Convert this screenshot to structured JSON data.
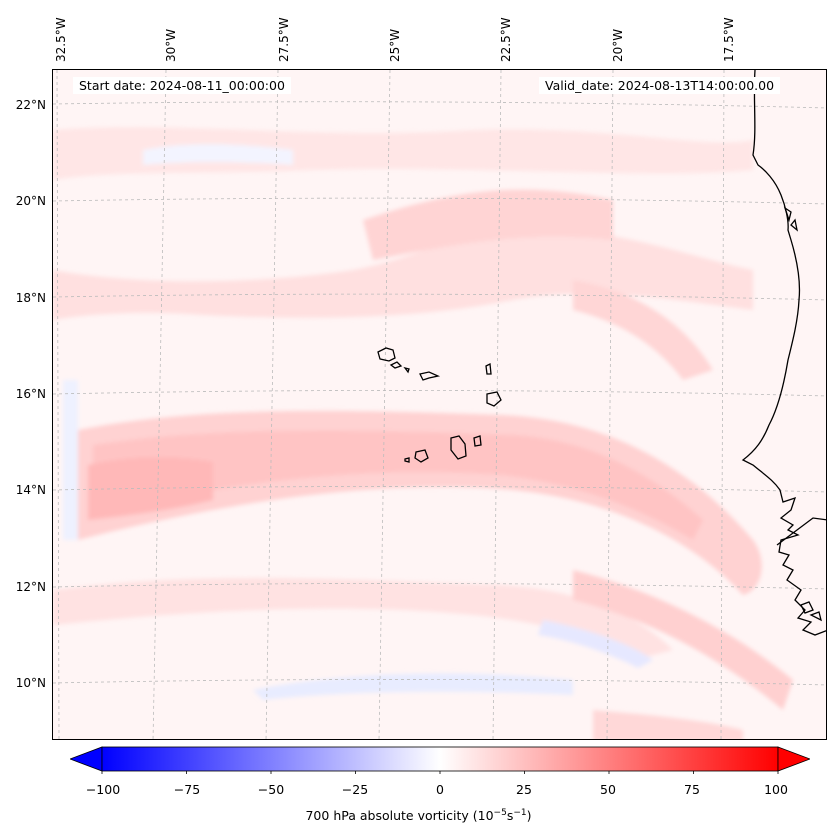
{
  "map": {
    "start_date": "Start date: 2024-08-11_00:00:00",
    "valid_date": "Valid_date: 2024-08-13T14:00:00.00",
    "longitude_labels": [
      "32.5°W",
      "30°W",
      "27.5°W",
      "25°W",
      "22.5°W",
      "20°W",
      "17.5°W"
    ],
    "latitude_labels": [
      "22°N",
      "20°N",
      "18°N",
      "16°N",
      "14°N",
      "12°N",
      "10°N"
    ],
    "field": "700 hPa absolute vorticity",
    "features": [
      "Cape Verde islands",
      "West African coastline"
    ]
  },
  "colorbar": {
    "title_prefix": "700 hPa absolute vorticity (10",
    "title_exp1": "−5",
    "title_mid": "s",
    "title_exp2": "−1",
    "title_suffix": ")",
    "tick_labels": [
      "−100",
      "−75",
      "−50",
      "−25",
      "0",
      "25",
      "50",
      "75",
      "100"
    ],
    "range": [
      -100,
      100
    ],
    "colormap": "bwr",
    "color_min": "#0000ff",
    "color_mid": "#ffffff",
    "color_max": "#ff0000"
  }
}
